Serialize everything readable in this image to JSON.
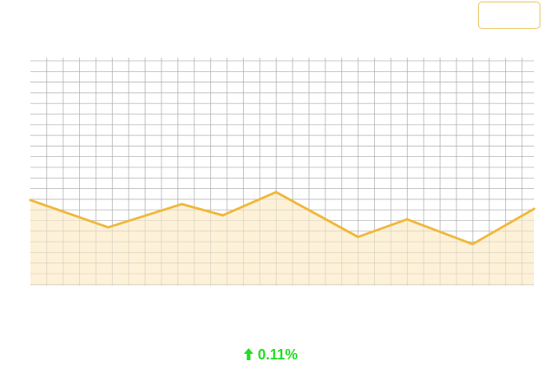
{
  "toolbar": {
    "button_label": ""
  },
  "change": {
    "direction": "up",
    "icon": "arrow-up-icon",
    "value": "0.11%",
    "color": "#22dd22"
  },
  "colors": {
    "line": "#efb83a",
    "fill": "#fdf1d8",
    "grid": "#a8a8a8",
    "button_border": "#e8c25a"
  },
  "chart_data": {
    "type": "area",
    "grid": true,
    "legend": "none",
    "x": [
      0,
      4.75,
      9.25,
      11.75,
      15.0,
      20.0,
      23.0,
      27.0,
      30.75
    ],
    "values": [
      107,
      73,
      102,
      88,
      117,
      61,
      83,
      52,
      96
    ],
    "xlim": [
      0,
      30.75
    ],
    "ylim": [
      0,
      285
    ]
  }
}
